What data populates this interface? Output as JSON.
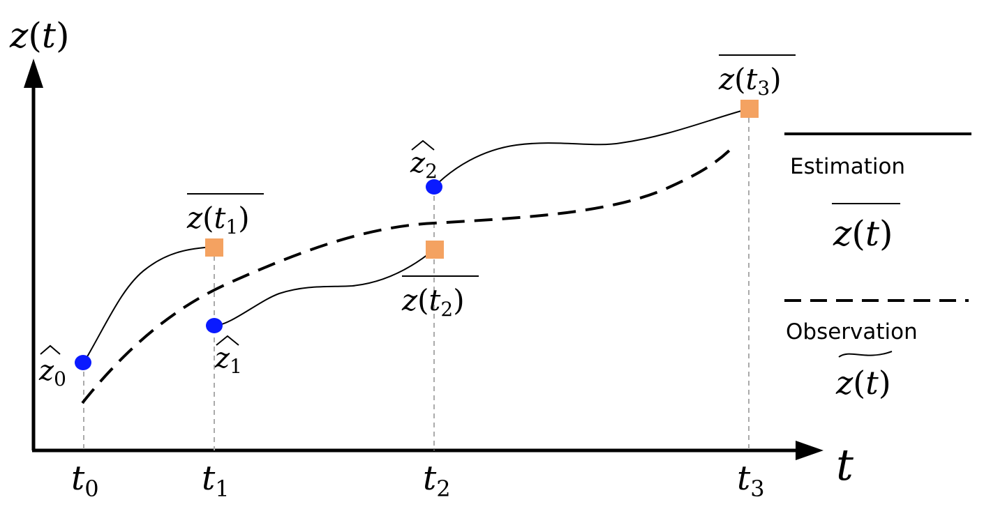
{
  "axes": {
    "y_label": {
      "base": "z",
      "arg": "t"
    },
    "x_label": "t"
  },
  "ticks": [
    {
      "base": "t",
      "sub": "0"
    },
    {
      "base": "t",
      "sub": "1"
    },
    {
      "base": "t",
      "sub": "2"
    },
    {
      "base": "t",
      "sub": "3"
    }
  ],
  "estimates": [
    {
      "base": "z",
      "sub": "0"
    },
    {
      "base": "z",
      "sub": "1"
    },
    {
      "base": "z",
      "sub": "2"
    }
  ],
  "predictions": [
    {
      "base": "z",
      "arg": "t",
      "sub": "1"
    },
    {
      "base": "z",
      "arg": "t",
      "sub": "2"
    },
    {
      "base": "z",
      "arg": "t",
      "sub": "3"
    }
  ],
  "legend": {
    "estimation": {
      "label": "Estimation",
      "symbol_base": "z",
      "symbol_arg": "t"
    },
    "observation": {
      "label": "Observation",
      "symbol_base": "z",
      "symbol_arg": "t"
    }
  },
  "colors": {
    "estimate_point": "#0a1aff",
    "prediction_point": "#f4a261",
    "guide_line": "#aaaaaa",
    "axis": "#000000"
  }
}
